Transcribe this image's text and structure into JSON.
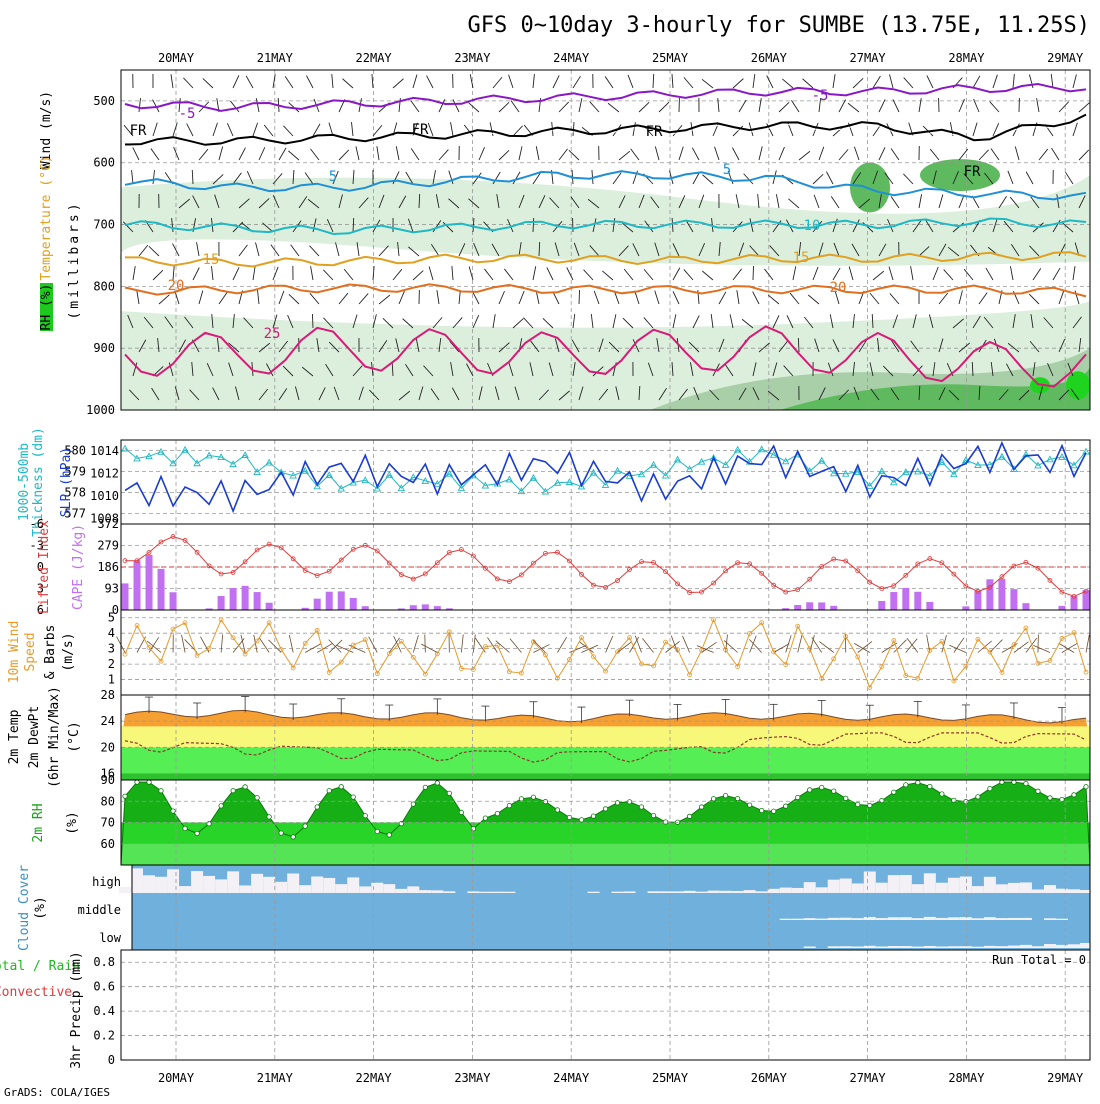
{
  "title": "GFS 0~10day 3-hourly for SUMBE (13.75E, 11.25S)",
  "credit": "GrADS: COLA/IGES",
  "dates": [
    "20MAY",
    "21MAY",
    "22MAY",
    "23MAY",
    "24MAY",
    "25MAY",
    "26MAY",
    "27MAY",
    "28MAY",
    "29MAY"
  ],
  "colors": {
    "rh_light": "#dcefdc",
    "rh_mid": "#a9cfa9",
    "rh_dark": "#5fba5f",
    "rh_bright": "#1fd41f",
    "temp_m5": "#8a17c4",
    "temp_fr": "#000000",
    "temp_5": "#1f8fd6",
    "temp_10": "#1fb8c4",
    "temp_15": "#e0a020",
    "temp_20": "#e07020",
    "temp_25": "#d81a78",
    "slp": "#1a3ccf",
    "thickness": "#1fb8c4",
    "cape": "#c070f0",
    "lifted": "#e03a3a",
    "wind_speed": "#e79a2a",
    "wind_barb": "#6b4a2a",
    "temp_fill": "#f5a030",
    "dew_fill": "#f7f77a",
    "green_fill": "#55ee55",
    "rh_fill": "#16b016",
    "cloud_bg": "#6fb0dc",
    "cloud_fill": "#f3f0f6"
  },
  "panels": [
    {
      "id": "upper_air",
      "label_lines": [
        {
          "text": "RH (%)",
          "color": "#1fb81f"
        },
        {
          "text": "Temperature (°C)",
          "color": "#e0a020"
        },
        {
          "text": "Wind (m/s)",
          "color": "#000000"
        },
        {
          "text": "(millibars)",
          "color": "#000000"
        }
      ],
      "yticks": [
        "500",
        "600",
        "700",
        "800",
        "900",
        "1000"
      ],
      "contour_labels": [
        "-5",
        "FR",
        "5",
        "10",
        "15",
        "20",
        "25"
      ]
    },
    {
      "id": "slp_thickness",
      "label_lines": [
        {
          "text": "1000-500mb",
          "color": "#1fb8c4"
        },
        {
          "text": "Thickness (dm)",
          "color": "#1fb8c4"
        },
        {
          "text": "SLP (hPa)",
          "color": "#1a3ccf"
        }
      ],
      "yticks_left": [
        "577",
        "578",
        "579",
        "580"
      ],
      "yticks_right": [
        "1008",
        "1010",
        "1012",
        "1014"
      ]
    },
    {
      "id": "cape_li",
      "label_lines": [
        {
          "text": "Lifted Index",
          "color": "#e03a3a"
        },
        {
          "text": "CAPE (J/kg)",
          "color": "#c070f0"
        }
      ],
      "yticks_left": [
        "-6",
        "-3",
        "0",
        "3",
        "6"
      ],
      "yticks_right": [
        "0",
        "93",
        "186",
        "279",
        "372"
      ]
    },
    {
      "id": "wind10m",
      "label_lines": [
        {
          "text": "10m Wind",
          "color": "#e79a2a"
        },
        {
          "text": "Speed",
          "color": "#e79a2a"
        },
        {
          "text": "& Barbs",
          "color": "#000000"
        },
        {
          "text": "(m/s)",
          "color": "#000000"
        }
      ],
      "yticks": [
        "1",
        "2",
        "3",
        "4",
        "5"
      ]
    },
    {
      "id": "temp2m",
      "label_lines": [
        {
          "text": "2m Temp",
          "color": "#000000"
        },
        {
          "text": "2m DewPt",
          "color": "#000000"
        },
        {
          "text": "(6hr Min/Max)",
          "color": "#000000"
        },
        {
          "text": "(°C)",
          "color": "#000000"
        }
      ],
      "yticks": [
        "16",
        "20",
        "24",
        "28"
      ]
    },
    {
      "id": "rh2m",
      "label_lines": [
        {
          "text": "2m RH",
          "color": "#1fa01f"
        },
        {
          "text": "(%)",
          "color": "#000000"
        }
      ],
      "yticks": [
        "60",
        "70",
        "80",
        "90"
      ]
    },
    {
      "id": "cloud",
      "label_lines": [
        {
          "text": "Cloud Cover",
          "color": "#3a8fc8"
        },
        {
          "text": "(%)",
          "color": "#000000"
        }
      ],
      "yticks": [
        "low",
        "middle",
        "high"
      ]
    },
    {
      "id": "precip",
      "label_lines": [
        {
          "text": "Total / Rain",
          "color": "#1fb81f"
        },
        {
          "text": "Convective",
          "color": "#e03a3a"
        },
        {
          "text": "3hr Precip (mm)",
          "color": "#000000"
        }
      ],
      "yticks": [
        "0",
        "0.2",
        "0.4",
        "0.6",
        "0.8"
      ],
      "run_total": "Run Total = 0"
    }
  ],
  "chart_data": [
    {
      "type": "heatmap",
      "title": "GFS 0~10day 3-hourly for SUMBE (13.75E, 11.25S)",
      "ylabel": "millibars",
      "ylim": [
        1000,
        450
      ],
      "x": [
        "20MAY",
        "21MAY",
        "22MAY",
        "23MAY",
        "24MAY",
        "25MAY",
        "26MAY",
        "27MAY",
        "28MAY",
        "29MAY"
      ],
      "temperature_contours": [
        {
          "name": "-5",
          "levels_mb": [
            505,
            510,
            505,
            500,
            495,
            490,
            485,
            485,
            480,
            478
          ]
        },
        {
          "name": "FR",
          "levels_mb": [
            565,
            565,
            560,
            555,
            550,
            545,
            540,
            540,
            560,
            525
          ]
        },
        {
          "name": "5",
          "levels_mb": [
            630,
            640,
            640,
            630,
            620,
            620,
            625,
            645,
            650,
            655
          ]
        },
        {
          "name": "10",
          "levels_mb": [
            700,
            705,
            710,
            705,
            700,
            700,
            700,
            700,
            695,
            700
          ]
        },
        {
          "name": "15",
          "levels_mb": [
            758,
            762,
            760,
            755,
            755,
            758,
            755,
            755,
            752,
            750
          ]
        },
        {
          "name": "20",
          "levels_mb": [
            808,
            805,
            803,
            803,
            805,
            805,
            805,
            805,
            805,
            810
          ]
        },
        {
          "name": "25",
          "levels_mb": [
            910,
            910,
            900,
            905,
            910,
            905,
            900,
            910,
            925,
            930
          ]
        }
      ]
    },
    {
      "type": "line",
      "x": [
        "20MAY",
        "21MAY",
        "22MAY",
        "23MAY",
        "24MAY",
        "25MAY",
        "26MAY",
        "27MAY",
        "28MAY",
        "29MAY"
      ],
      "series": [
        {
          "name": "SLP (hPa)",
          "values": [
            1010.5,
            1010.0,
            1012.5,
            1011.5,
            1013.0,
            1010.5,
            1013.5,
            1011.0,
            1013.5,
            1013.0
          ]
        },
        {
          "name": "1000-500mb Thickness (dm)",
          "values": [
            579.8,
            579.6,
            578.4,
            578.6,
            578.3,
            579.1,
            579.9,
            578.6,
            579.4,
            579.6
          ]
        }
      ],
      "ylim_left": [
        576.5,
        580.5
      ],
      "ylim_right": [
        1008,
        1015
      ]
    },
    {
      "type": "bar",
      "x": [
        "20MAY",
        "21MAY",
        "22MAY",
        "23MAY",
        "24MAY",
        "25MAY",
        "26MAY",
        "27MAY",
        "28MAY",
        "29MAY"
      ],
      "series": [
        {
          "name": "CAPE (J/kg)",
          "values": [
            230,
            90,
            70,
            10,
            0,
            0,
            5,
            60,
            125,
            75
          ]
        },
        {
          "name": "Lifted Index",
          "values": [
            -3,
            -1,
            -1,
            -0.3,
            0,
            1.5,
            1.5,
            0.8,
            1.2,
            2
          ]
        }
      ],
      "ylim_cape": [
        0,
        372
      ],
      "ylim_li": [
        6,
        -6
      ]
    },
    {
      "type": "line",
      "x": [
        "20MAY",
        "21MAY",
        "22MAY",
        "23MAY",
        "24MAY",
        "25MAY",
        "26MAY",
        "27MAY",
        "28MAY",
        "29MAY"
      ],
      "series": [
        {
          "name": "10m Wind Speed (m/s)",
          "values": [
            3.0,
            3.6,
            2.6,
            2.6,
            2.4,
            2.6,
            3.6,
            1.8,
            2.6,
            3.0
          ]
        }
      ],
      "ylim": [
        0,
        5.5
      ]
    },
    {
      "type": "area",
      "x": [
        "20MAY",
        "21MAY",
        "22MAY",
        "23MAY",
        "24MAY",
        "25MAY",
        "26MAY",
        "27MAY",
        "28MAY",
        "29MAY"
      ],
      "series": [
        {
          "name": "2m Temp",
          "values": [
            25.0,
            25.2,
            24.8,
            24.8,
            24.3,
            24.8,
            24.8,
            24.6,
            24.6,
            24.0
          ]
        },
        {
          "name": "2m DewPt",
          "values": [
            21.0,
            20.5,
            19.8,
            19.5,
            19.3,
            19.4,
            21.5,
            22.2,
            22.2,
            22.0
          ]
        }
      ],
      "ylim": [
        15,
        28
      ]
    },
    {
      "type": "area",
      "x": [
        "20MAY",
        "21MAY",
        "22MAY",
        "23MAY",
        "24MAY",
        "25MAY",
        "26MAY",
        "27MAY",
        "28MAY",
        "29MAY"
      ],
      "series": [
        {
          "name": "2m RH (%)",
          "values": [
            80,
            75,
            75,
            77,
            77,
            74,
            80,
            83,
            85,
            86
          ]
        }
      ],
      "ylim": [
        50,
        90
      ]
    },
    {
      "type": "bar",
      "x": [
        "20MAY",
        "21MAY",
        "22MAY",
        "23MAY",
        "24MAY",
        "25MAY",
        "26MAY",
        "27MAY",
        "28MAY",
        "29MAY"
      ],
      "series": [
        {
          "name": "high",
          "values": [
            60,
            50,
            40,
            2,
            0,
            2,
            5,
            50,
            40,
            5
          ]
        },
        {
          "name": "middle",
          "values": [
            0,
            0,
            0,
            0,
            0,
            0,
            0,
            5,
            5,
            0
          ]
        },
        {
          "name": "low",
          "values": [
            0,
            0,
            0,
            0,
            0,
            0,
            0,
            3,
            2,
            10
          ]
        }
      ],
      "ylim": [
        0,
        100
      ]
    },
    {
      "type": "bar",
      "x": [
        "20MAY",
        "21MAY",
        "22MAY",
        "23MAY",
        "24MAY",
        "25MAY",
        "26MAY",
        "27MAY",
        "28MAY",
        "29MAY"
      ],
      "series": [
        {
          "name": "3hr Precip (mm)",
          "values": [
            0,
            0,
            0,
            0,
            0,
            0,
            0,
            0,
            0,
            0
          ]
        }
      ],
      "ylim": [
        0,
        0.9
      ]
    }
  ]
}
